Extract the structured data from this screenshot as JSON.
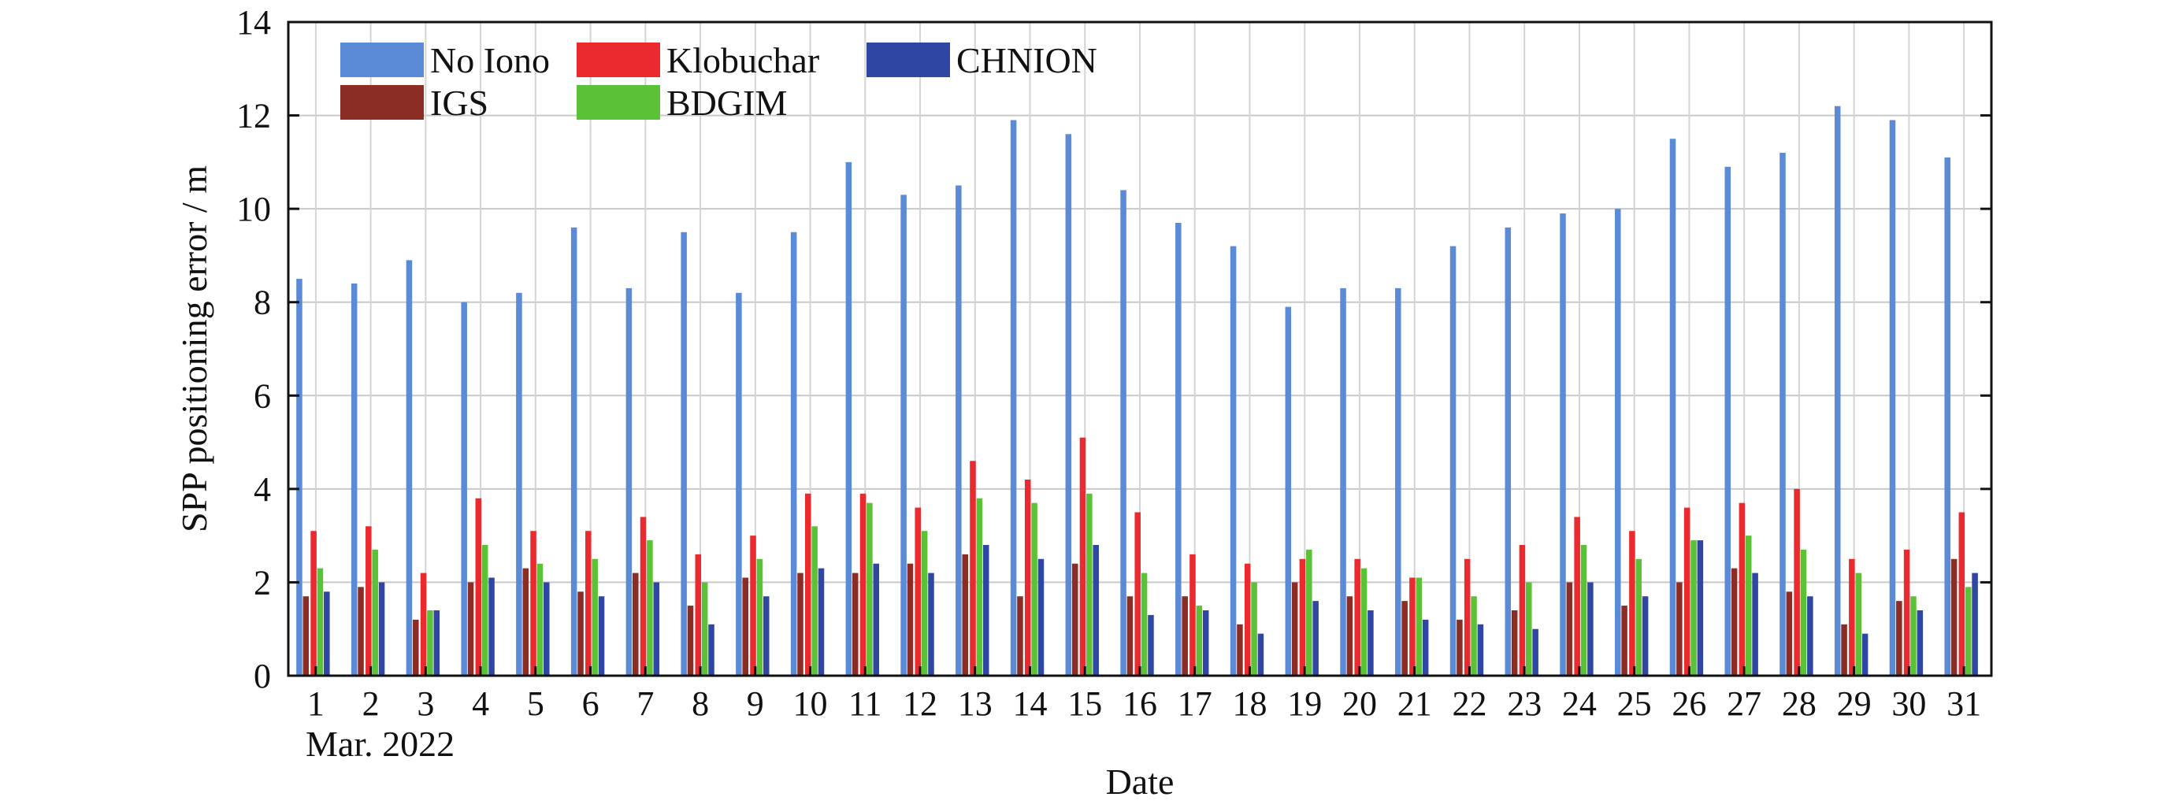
{
  "chart_data": {
    "type": "bar",
    "xlabel": "Date",
    "xlabel_sub": "Mar. 2022",
    "ylabel": "SPP positioning error / m",
    "ylim": [
      0,
      14
    ],
    "yticks": [
      0,
      2,
      4,
      6,
      8,
      10,
      12,
      14
    ],
    "grid": true,
    "legend_position": "top-left",
    "categories": [
      "1",
      "2",
      "3",
      "4",
      "5",
      "6",
      "7",
      "8",
      "9",
      "10",
      "11",
      "12",
      "13",
      "14",
      "15",
      "16",
      "17",
      "18",
      "19",
      "20",
      "21",
      "22",
      "23",
      "24",
      "25",
      "26",
      "27",
      "28",
      "29",
      "30",
      "31"
    ],
    "series": [
      {
        "name": "No Iono",
        "color": "#5b8bd6",
        "values": [
          8.5,
          8.4,
          8.9,
          8.0,
          8.2,
          9.6,
          8.3,
          9.5,
          8.2,
          9.5,
          11.0,
          10.3,
          10.5,
          11.9,
          11.6,
          10.4,
          9.7,
          9.2,
          7.9,
          8.3,
          8.3,
          9.2,
          9.6,
          9.9,
          10.0,
          11.5,
          10.9,
          11.2,
          12.2,
          11.9,
          11.1
        ]
      },
      {
        "name": "IGS",
        "color": "#8b2d24",
        "values": [
          1.7,
          1.9,
          1.2,
          2.0,
          2.3,
          1.8,
          2.2,
          1.5,
          2.1,
          2.2,
          2.2,
          2.4,
          2.6,
          1.7,
          2.4,
          1.7,
          1.7,
          1.1,
          2.0,
          1.7,
          1.6,
          1.2,
          1.4,
          2.0,
          1.5,
          2.0,
          2.3,
          1.8,
          1.1,
          1.6,
          2.5
        ]
      },
      {
        "name": "Klobuchar",
        "color": "#ea2a2e",
        "values": [
          3.1,
          3.2,
          2.2,
          3.8,
          3.1,
          3.1,
          3.4,
          2.6,
          3.0,
          3.9,
          3.9,
          3.6,
          4.6,
          4.2,
          5.1,
          3.5,
          2.6,
          2.4,
          2.5,
          2.5,
          2.1,
          2.5,
          2.8,
          3.4,
          3.1,
          3.6,
          3.7,
          4.0,
          2.5,
          2.7,
          3.5
        ]
      },
      {
        "name": "BDGIM",
        "color": "#5bc136",
        "values": [
          2.3,
          2.7,
          1.4,
          2.8,
          2.4,
          2.5,
          2.9,
          2.0,
          2.5,
          3.2,
          3.7,
          3.1,
          3.8,
          3.7,
          3.9,
          2.2,
          1.5,
          2.0,
          2.7,
          2.3,
          2.1,
          1.7,
          2.0,
          2.8,
          2.5,
          2.9,
          3.0,
          2.7,
          2.2,
          1.7,
          1.9
        ]
      },
      {
        "name": "CHNION",
        "color": "#2f47a3",
        "values": [
          1.8,
          2.0,
          1.4,
          2.1,
          2.0,
          1.7,
          2.0,
          1.1,
          1.7,
          2.3,
          2.4,
          2.2,
          2.8,
          2.5,
          2.8,
          1.3,
          1.4,
          0.9,
          1.6,
          1.4,
          1.2,
          1.1,
          1.0,
          2.0,
          1.7,
          2.9,
          2.2,
          1.7,
          0.9,
          1.4,
          2.2
        ]
      }
    ],
    "legend_order": [
      "No Iono",
      "Klobuchar",
      "CHNION",
      "IGS",
      "BDGIM"
    ]
  }
}
